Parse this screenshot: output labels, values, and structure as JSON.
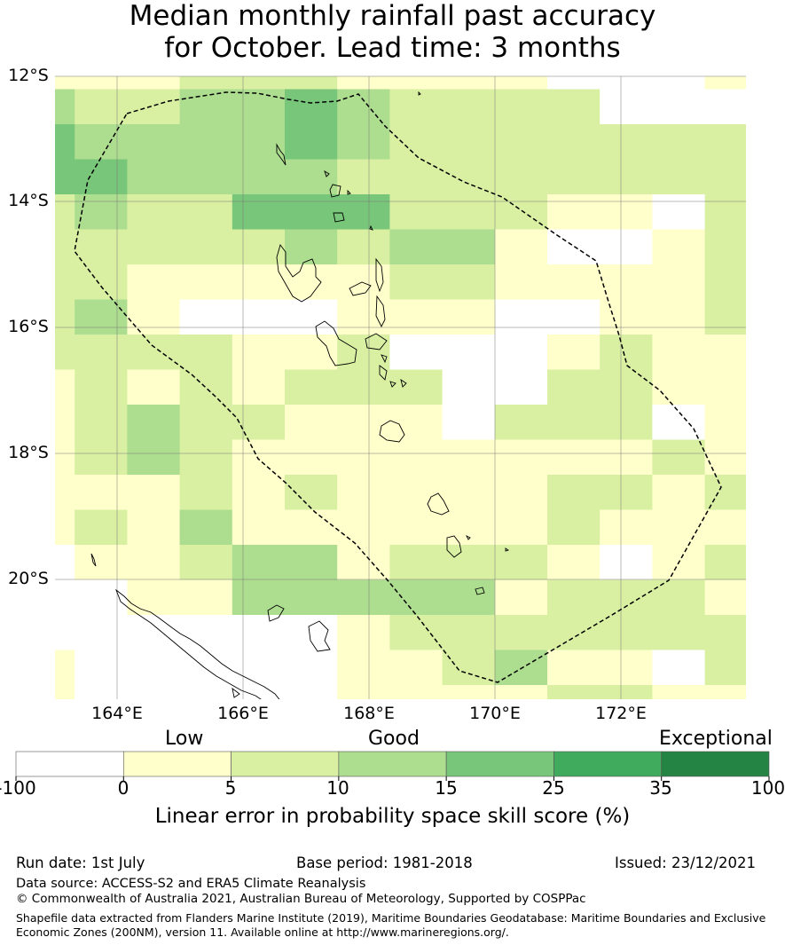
{
  "title_line1": "Median monthly rainfall past accuracy",
  "title_line2": "for October. Lead time: 3 months",
  "map": {
    "lat_labels": [
      "12°S",
      "14°S",
      "16°S",
      "18°S",
      "20°S"
    ],
    "lon_labels": [
      "164°E",
      "166°E",
      "168°E",
      "170°E",
      "172°E"
    ],
    "lon_range": [
      163,
      174
    ],
    "lat_range": [
      -21.9,
      -12
    ]
  },
  "colorbar": {
    "category_labels": [
      "Low",
      "Good",
      "Exceptional"
    ],
    "tick_labels": [
      "-100",
      "0",
      "5",
      "10",
      "15",
      "25",
      "35",
      "100"
    ],
    "colors": [
      "#ffffff",
      "#ffffcc",
      "#d9f0a3",
      "#addd8e",
      "#78c679",
      "#41ab5d",
      "#238443"
    ],
    "title": "Linear error in probability space skill score (%)"
  },
  "footer": {
    "run_date": "Run date: 1st July",
    "base_period": "Base period: 1981-2018",
    "issued": "Issued: 23/12/2021",
    "data_source": "Data source: ACCESS-S2 and ERA5 Climate Reanalysis",
    "copyright": "© Commonwealth of Australia 2021, Australian Bureau of Meteorology, Supported by COSPPac",
    "shapefile_line1": "Shapefile data extracted from Flanders Marine Institute (2019), Maritime Boundaries Geodatabase: Maritime Boundaries and Exclusive",
    "shapefile_line2": "Economic Zones (200NM), version 11. Available online at http://www.marineregions.org/."
  },
  "grid_legend": "0=white(<0) 1=5 2=10 3=15 4=25",
  "grid": [
    "1112221111000111",
    "3223343222200001",
    "4333343222222211",
    "4433332222222211",
    "2322444222110221",
    "2222232331001221",
    "2211111221111221",
    "2310001110011211",
    "2222112000121111",
    "1212122200221102",
    "1232211102220112",
    "1232111111112112",
    "1112121111221211",
    "1213111111211110",
    "0112331222101210",
    "0011333331222112",
    "0000001222222211",
    "1000001123110211",
    "1000001111221111",
    "2100011003211111",
    "3100111122111111",
    "2100112111221112"
  ]
}
